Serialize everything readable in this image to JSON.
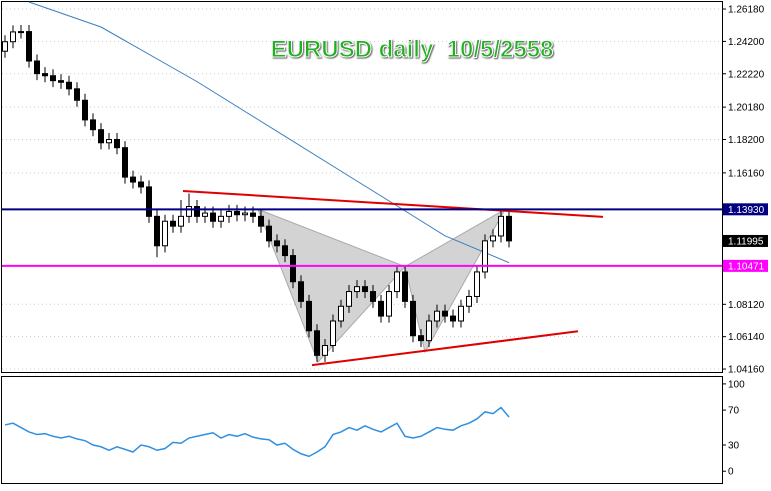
{
  "chart_data": [
    {
      "type": "candlestick",
      "title": "EURUSD daily  10/5/2558",
      "open": [
        1.236,
        1.2418,
        1.2478,
        1.248,
        1.23,
        1.2223,
        1.221,
        1.218,
        1.217,
        1.213,
        1.206,
        1.194,
        1.188,
        1.18,
        1.182,
        1.177,
        1.159,
        1.156,
        1.153,
        1.135,
        1.117,
        1.132,
        1.129,
        1.135,
        1.141,
        1.135,
        1.137,
        1.132,
        1.135,
        1.138,
        1.136,
        1.137,
        1.135,
        1.129,
        1.12,
        1.117,
        1.111,
        1.095,
        1.083,
        1.065,
        1.05,
        1.056,
        1.071,
        1.08,
        1.089,
        1.092,
        1.089,
        1.083,
        1.074,
        1.089,
        1.101,
        1.083,
        1.062,
        1.059,
        1.071,
        1.077,
        1.074,
        1.071,
        1.08,
        1.086,
        1.101,
        1.12,
        1.123,
        1.135
      ],
      "high": [
        1.2458,
        1.2518,
        1.252,
        1.252,
        1.234,
        1.2263,
        1.225,
        1.222,
        1.221,
        1.217,
        1.21,
        1.198,
        1.192,
        1.186,
        1.186,
        1.181,
        1.163,
        1.16,
        1.157,
        1.139,
        1.136,
        1.136,
        1.145,
        1.149,
        1.145,
        1.141,
        1.141,
        1.139,
        1.142,
        1.142,
        1.141,
        1.141,
        1.139,
        1.133,
        1.124,
        1.121,
        1.115,
        1.099,
        1.087,
        1.069,
        1.06,
        1.075,
        1.084,
        1.093,
        1.096,
        1.096,
        1.093,
        1.087,
        1.093,
        1.105,
        1.105,
        1.087,
        1.066,
        1.075,
        1.081,
        1.081,
        1.078,
        1.084,
        1.09,
        1.105,
        1.124,
        1.127,
        1.1393,
        1.139
      ],
      "low": [
        1.232,
        1.2378,
        1.2438,
        1.226,
        1.2183,
        1.217,
        1.214,
        1.213,
        1.209,
        1.202,
        1.19,
        1.184,
        1.176,
        1.176,
        1.173,
        1.155,
        1.152,
        1.149,
        1.131,
        1.11,
        1.113,
        1.125,
        1.125,
        1.131,
        1.131,
        1.131,
        1.128,
        1.128,
        1.131,
        1.132,
        1.132,
        1.131,
        1.125,
        1.116,
        1.113,
        1.107,
        1.091,
        1.079,
        1.061,
        1.046,
        1.046,
        1.052,
        1.067,
        1.076,
        1.085,
        1.085,
        1.079,
        1.07,
        1.07,
        1.085,
        1.079,
        1.058,
        1.055,
        1.055,
        1.067,
        1.07,
        1.067,
        1.067,
        1.076,
        1.082,
        1.097,
        1.116,
        1.119,
        1.116
      ],
      "close": [
        1.2418,
        1.2478,
        1.248,
        1.23,
        1.2223,
        1.221,
        1.218,
        1.217,
        1.213,
        1.206,
        1.194,
        1.188,
        1.18,
        1.182,
        1.177,
        1.159,
        1.156,
        1.153,
        1.135,
        1.117,
        1.132,
        1.129,
        1.135,
        1.141,
        1.135,
        1.137,
        1.132,
        1.135,
        1.138,
        1.136,
        1.137,
        1.135,
        1.129,
        1.12,
        1.117,
        1.111,
        1.095,
        1.083,
        1.065,
        1.05,
        1.056,
        1.071,
        1.08,
        1.089,
        1.092,
        1.089,
        1.083,
        1.074,
        1.089,
        1.101,
        1.083,
        1.062,
        1.059,
        1.071,
        1.077,
        1.074,
        1.071,
        1.08,
        1.086,
        1.101,
        1.12,
        1.123,
        1.135,
        1.12
      ],
      "color": "#000000",
      "ylim": [
        1.0398,
        1.2661
      ],
      "yticks": [
        {
          "value": 1.2618,
          "label": "1.26180"
        },
        {
          "value": 1.242,
          "label": "1.24200"
        },
        {
          "value": 1.2222,
          "label": "1.22220"
        },
        {
          "value": 1.2018,
          "label": "1.20180"
        },
        {
          "value": 1.182,
          "label": "1.18200"
        },
        {
          "value": 1.1616,
          "label": "1.16160"
        },
        {
          "value": 1.0812,
          "label": "1.08120"
        },
        {
          "value": 1.0614,
          "label": "1.06140"
        },
        {
          "value": 1.0416,
          "label": "1.04160"
        }
      ],
      "grid": true,
      "moving_average": {
        "x": [
          3,
          12,
          24,
          34,
          43,
          49,
          55,
          63
        ],
        "values": [
          1.2661,
          1.2508,
          1.2174,
          1.187,
          1.1596,
          1.1414,
          1.1231,
          1.1067
        ],
        "color": "#3a7fc0"
      },
      "levels": [
        {
          "value": 1.1393,
          "label": "1.13930",
          "color": "#000080"
        },
        {
          "value": 1.11995,
          "label": "1.11995",
          "color": "#000000"
        },
        {
          "value": 1.10471,
          "label": "1.10471",
          "color": "#ff00ff"
        }
      ],
      "trendlines": [
        {
          "x": [
            22.25,
            74.75
          ],
          "values": [
            1.1505,
            1.1347
          ],
          "color": "#e00000"
        },
        {
          "x": [
            38.375,
            71.625
          ],
          "values": [
            1.044,
            1.0647
          ],
          "color": "#e00000"
        }
      ],
      "pattern": {
        "x": [
          31.625,
          39.125,
          50,
          52.5,
          62.5
        ],
        "values": [
          1.1393,
          1.0459,
          1.1043,
          1.052,
          1.1393
        ],
        "color": "#c8c8c8"
      }
    },
    {
      "type": "line",
      "values": [
        53,
        55,
        50,
        45,
        42,
        43,
        40,
        38,
        40,
        37,
        35,
        30,
        28,
        24,
        28,
        25,
        22,
        30,
        28,
        24,
        26,
        33,
        32,
        38,
        40,
        42,
        44,
        38,
        42,
        40,
        43,
        39,
        37,
        36,
        30,
        32,
        25,
        20,
        17,
        22,
        28,
        42,
        45,
        50,
        47,
        52,
        48,
        45,
        50,
        55,
        40,
        38,
        40,
        45,
        50,
        48,
        47,
        52,
        55,
        60,
        68,
        66,
        73,
        62
      ],
      "color": "#2f8fe0",
      "ylim": [
        -13.5,
        107.9
      ],
      "yticks": [
        0,
        30,
        70,
        100
      ]
    }
  ]
}
